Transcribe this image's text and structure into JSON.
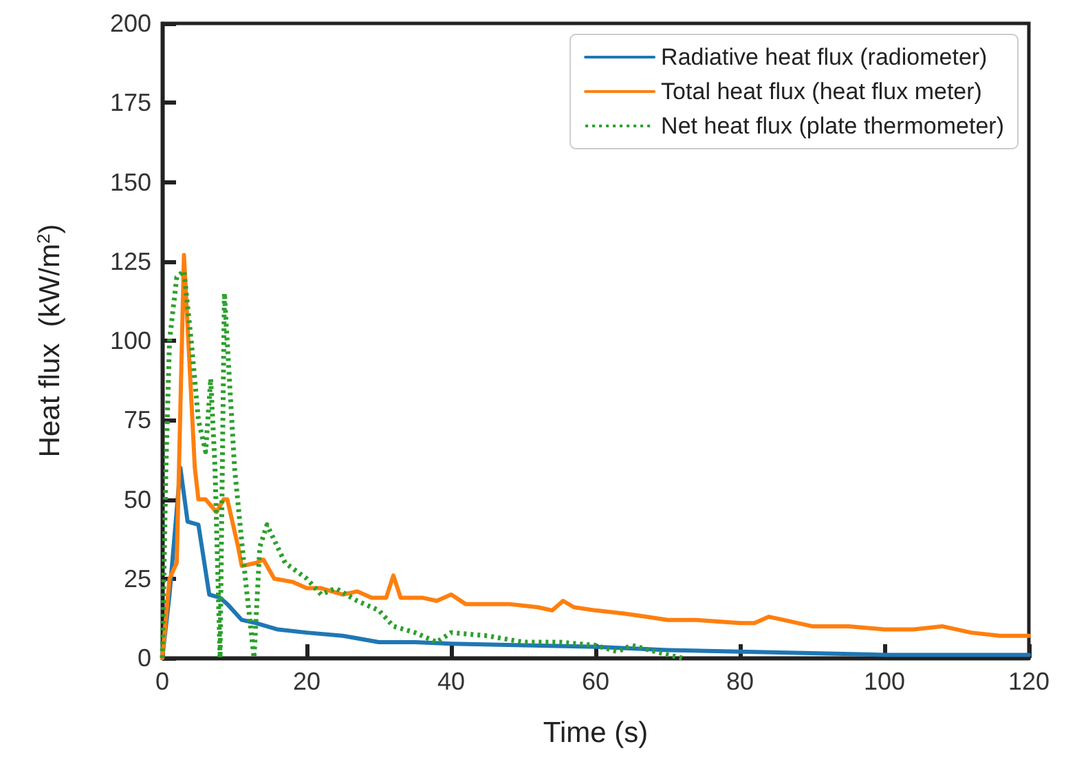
{
  "chart_data": {
    "type": "line",
    "xlabel": "Time (s)",
    "ylabel": "Heat flux  (kW/m$^{2}$)",
    "xlim": [
      0,
      120
    ],
    "xticks": [
      0,
      20,
      40,
      60,
      80,
      100,
      120
    ],
    "ylim": [
      0,
      200
    ],
    "yticks": [
      0,
      25,
      50,
      75,
      100,
      125,
      150,
      175,
      200
    ],
    "grid": false,
    "legend": "top right",
    "marker": "none",
    "series": [
      {
        "name": "Radiative heat flux (radiometer)",
        "color": "#1f77b4",
        "line_style": "solid",
        "x": [
          0,
          1,
          2.5,
          3.5,
          5,
          6.5,
          8,
          9,
          11,
          13,
          16,
          20,
          25,
          30,
          35,
          40,
          50,
          60,
          70,
          80,
          90,
          100,
          120
        ],
        "values": [
          0,
          20,
          60,
          43,
          42,
          20,
          19,
          17,
          12,
          11,
          9,
          8,
          7,
          5,
          5,
          4.5,
          4,
          3.5,
          2.5,
          2,
          1.5,
          1,
          1
        ]
      },
      {
        "name": "Total heat flux (heat flux meter)",
        "color": "#ff7f0e",
        "line_style": "solid",
        "x": [
          0,
          1,
          2,
          3,
          4.5,
          5,
          6,
          7.5,
          8.5,
          9,
          10.5,
          11,
          13,
          14,
          15.5,
          18,
          20,
          22,
          25,
          27,
          29,
          31,
          32,
          33,
          36,
          38,
          40,
          42,
          45,
          48,
          52,
          54,
          55.5,
          57,
          60,
          64,
          67,
          70,
          74,
          80,
          82,
          84,
          86,
          90,
          95,
          100,
          104,
          108,
          112,
          116,
          120
        ],
        "values": [
          0,
          25,
          30,
          127,
          60,
          50,
          50,
          46,
          50,
          50,
          35,
          29,
          30,
          31,
          25,
          24,
          22,
          22,
          20,
          21,
          19,
          19,
          26,
          19,
          19,
          18,
          20,
          17,
          17,
          17,
          16,
          15,
          18,
          16,
          15,
          14,
          13,
          12,
          12,
          11,
          11,
          13,
          12,
          10,
          10,
          9,
          9,
          10,
          8,
          7,
          7
        ]
      },
      {
        "name": "Net heat flux (plate thermometer)",
        "color": "#2ca02c",
        "line_style": "dotted",
        "x": [
          0,
          0.5,
          1,
          2,
          3,
          4,
          5,
          6,
          6.7,
          7.3,
          8,
          8.6,
          10,
          11.5,
          12.7,
          13.5,
          14.5,
          17,
          20,
          22,
          24,
          27,
          30,
          32,
          35,
          38,
          40,
          45,
          50,
          55,
          60,
          63,
          65,
          70,
          72
        ],
        "values": [
          0,
          60,
          100,
          120,
          122,
          100,
          75,
          65,
          88,
          60,
          0,
          115,
          60,
          25,
          0,
          35,
          42,
          30,
          25,
          20,
          22,
          18,
          15,
          10,
          8,
          5,
          8,
          7,
          5,
          5,
          4,
          2,
          4,
          1,
          0
        ]
      }
    ]
  }
}
